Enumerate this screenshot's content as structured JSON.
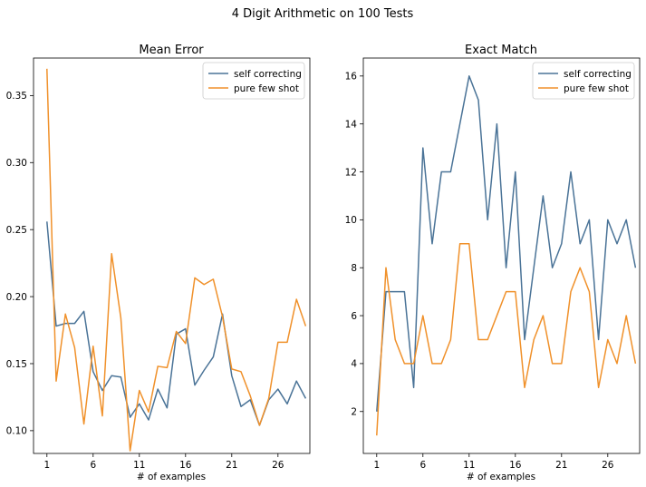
{
  "suptitle": "4 Digit Arithmetic on 100 Tests",
  "colors": {
    "self": "#4a7397",
    "few": "#f0912b",
    "axis": "#000000"
  },
  "chart_data": [
    {
      "type": "line",
      "title": "Mean Error",
      "xlabel": "# of examples",
      "ylabel": "",
      "xlim": [
        -0.45,
        29.45
      ],
      "ylim": [
        0.083,
        0.378
      ],
      "xticks": [
        1,
        6,
        11,
        16,
        21,
        26
      ],
      "yticks": [
        0.1,
        0.15,
        0.2,
        0.25,
        0.3,
        0.35
      ],
      "ytick_labels": [
        "0.10",
        "0.15",
        "0.20",
        "0.25",
        "0.30",
        "0.35"
      ],
      "legend": {
        "position": "top-right"
      },
      "x": [
        1,
        2,
        3,
        4,
        5,
        6,
        7,
        8,
        9,
        10,
        11,
        12,
        13,
        14,
        15,
        16,
        17,
        18,
        19,
        20,
        21,
        22,
        23,
        24,
        25,
        26,
        27,
        28,
        29
      ],
      "series": [
        {
          "name": "self correcting",
          "color": "#4a7397",
          "values": [
            0.256,
            0.178,
            0.18,
            0.18,
            0.189,
            0.144,
            0.13,
            0.141,
            0.14,
            0.11,
            0.12,
            0.108,
            0.131,
            0.117,
            0.172,
            0.176,
            0.134,
            0.145,
            0.155,
            0.187,
            0.141,
            0.118,
            0.123,
            0.104,
            0.123,
            0.131,
            0.12,
            0.137,
            0.124
          ]
        },
        {
          "name": "pure few shot",
          "color": "#f0912b",
          "values": [
            0.37,
            0.137,
            0.187,
            0.162,
            0.105,
            0.163,
            0.111,
            0.232,
            0.184,
            0.085,
            0.13,
            0.114,
            0.148,
            0.147,
            0.174,
            0.165,
            0.214,
            0.209,
            0.213,
            0.185,
            0.146,
            0.144,
            0.126,
            0.104,
            0.124,
            0.166,
            0.166,
            0.198,
            0.178
          ]
        }
      ]
    },
    {
      "type": "line",
      "title": "Exact Match",
      "xlabel": "# of examples",
      "ylabel": "",
      "xlim": [
        -0.45,
        29.45
      ],
      "ylim": [
        0.25,
        16.75
      ],
      "xticks": [
        1,
        6,
        11,
        16,
        21,
        26
      ],
      "yticks": [
        2,
        4,
        6,
        8,
        10,
        12,
        14,
        16
      ],
      "ytick_labels": [
        "2",
        "4",
        "6",
        "8",
        "10",
        "12",
        "14",
        "16"
      ],
      "legend": {
        "position": "top-right"
      },
      "x": [
        1,
        2,
        3,
        4,
        5,
        6,
        7,
        8,
        9,
        10,
        11,
        12,
        13,
        14,
        15,
        16,
        17,
        18,
        19,
        20,
        21,
        22,
        23,
        24,
        25,
        26,
        27,
        28,
        29
      ],
      "series": [
        {
          "name": "self correcting",
          "color": "#4a7397",
          "values": [
            2,
            7,
            7,
            7,
            3,
            13,
            9,
            12,
            12,
            14,
            16,
            15,
            10,
            14,
            8,
            12,
            5,
            8,
            11,
            8,
            9,
            12,
            9,
            10,
            5,
            10,
            9,
            10,
            8
          ]
        },
        {
          "name": "pure few shot",
          "color": "#f0912b",
          "values": [
            1,
            8,
            5,
            4,
            4,
            6,
            4,
            4,
            5,
            9,
            9,
            5,
            5,
            6,
            7,
            7,
            3,
            5,
            6,
            4,
            4,
            7,
            8,
            7,
            3,
            5,
            4,
            6,
            4
          ]
        }
      ]
    }
  ]
}
